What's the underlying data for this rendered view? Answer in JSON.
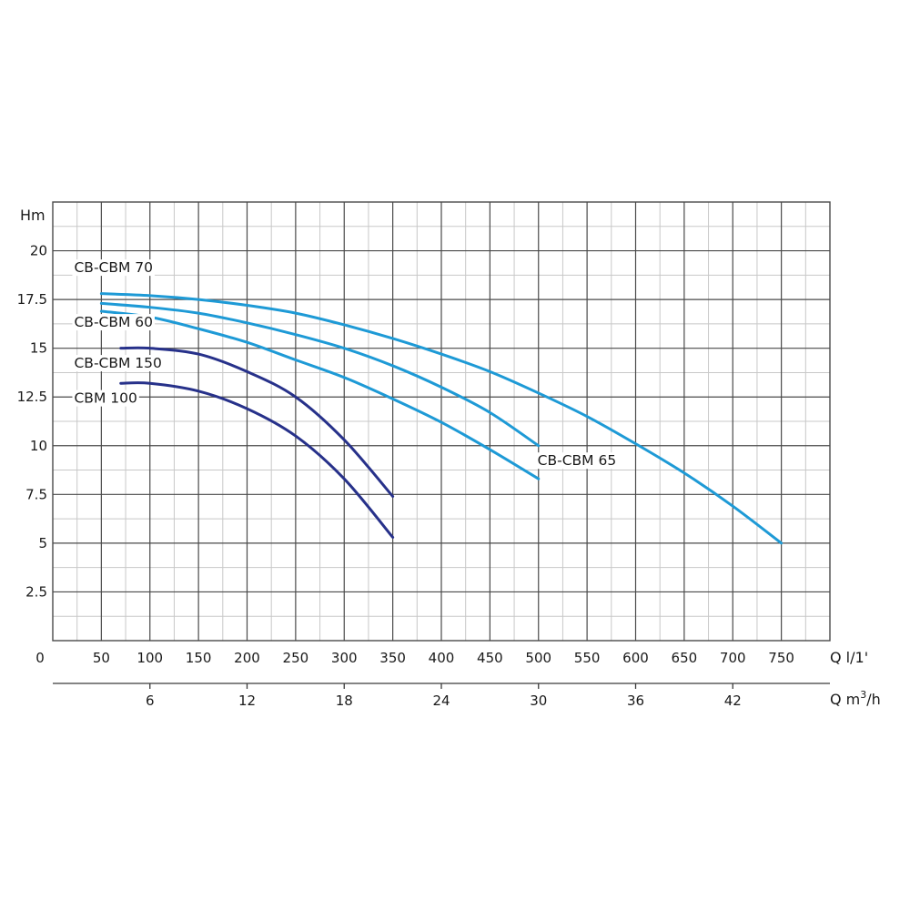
{
  "chart_data": {
    "type": "line",
    "ylabel": "Hm",
    "xlabel": "Q l/1'",
    "x2label_prefix": "Q m",
    "x2label_sup": "3",
    "x2label_suffix": "/h",
    "xlim": [
      0,
      800
    ],
    "ylim": [
      0,
      22.5
    ],
    "y_ticks": [
      "2.5",
      "5",
      "7.5",
      "10",
      "12.5",
      "15",
      "17.5",
      "20"
    ],
    "y_tick_values": [
      2.5,
      5,
      7.5,
      10,
      12.5,
      15,
      17.5,
      20
    ],
    "x_ticks": [
      "0",
      "50",
      "100",
      "150",
      "200",
      "250",
      "300",
      "350",
      "400",
      "450",
      "500",
      "550",
      "600",
      "650",
      "700",
      "750"
    ],
    "x_tick_values": [
      0,
      50,
      100,
      150,
      200,
      250,
      300,
      350,
      400,
      450,
      500,
      550,
      600,
      650,
      700,
      750
    ],
    "x2_ticks": [
      "6",
      "12",
      "18",
      "24",
      "30",
      "36",
      "42"
    ],
    "x2_tick_values": [
      6,
      12,
      18,
      24,
      30,
      36,
      42
    ],
    "grid": true,
    "colors": {
      "light": "#1e9ad6",
      "dark": "#27318a",
      "grid_major": "#4a4a4a",
      "grid_minor": "#c8c8c8"
    },
    "series": [
      {
        "name": "CB-CBM 70",
        "label": "CB-CBM 70",
        "color": "#1e9ad6",
        "x": [
          50,
          100,
          150,
          200,
          250,
          300,
          350,
          400,
          450,
          500,
          550,
          600,
          650,
          700,
          750
        ],
        "y": [
          17.8,
          17.7,
          17.5,
          17.2,
          16.8,
          16.2,
          15.5,
          14.7,
          13.8,
          12.7,
          11.5,
          10.1,
          8.6,
          6.9,
          5.0
        ]
      },
      {
        "name": "",
        "label": "",
        "color": "#1e9ad6",
        "x": [
          50,
          100,
          150,
          200,
          250,
          300,
          350,
          400,
          450,
          500
        ],
        "y": [
          17.3,
          17.1,
          16.8,
          16.3,
          15.7,
          15.0,
          14.1,
          13.0,
          11.7,
          10.0
        ]
      },
      {
        "name": "CB-CBM 65",
        "label": "CB-CBM 65",
        "color": "#1e9ad6",
        "x": [
          50,
          100,
          150,
          200,
          250,
          300,
          350,
          400,
          450,
          500
        ],
        "y": [
          16.9,
          16.6,
          16.0,
          15.3,
          14.4,
          13.5,
          12.4,
          11.2,
          9.8,
          8.3
        ]
      },
      {
        "name": "CB-CBM 150",
        "label": "CB-CBM 150",
        "color": "#27318a",
        "x": [
          70,
          100,
          150,
          200,
          250,
          300,
          350
        ],
        "y": [
          15.0,
          15.0,
          14.7,
          13.8,
          12.5,
          10.3,
          7.4
        ]
      },
      {
        "name": "CBM 100",
        "label": "CBM 100",
        "color": "#27318a",
        "x": [
          70,
          100,
          150,
          200,
          250,
          300,
          350
        ],
        "y": [
          13.2,
          13.2,
          12.8,
          11.9,
          10.5,
          8.3,
          5.3
        ]
      }
    ],
    "annotations": [
      {
        "text": "CB-CBM 70",
        "x": 22,
        "y": 18.9
      },
      {
        "text": "CB-CBM 60",
        "x": 22,
        "y": 16.1
      },
      {
        "text": "CB-CBM 150",
        "x": 22,
        "y": 14.0
      },
      {
        "text": "CBM 100",
        "x": 22,
        "y": 12.2
      },
      {
        "text": "CB-CBM 65",
        "x": 499,
        "y": 9.0
      }
    ]
  }
}
